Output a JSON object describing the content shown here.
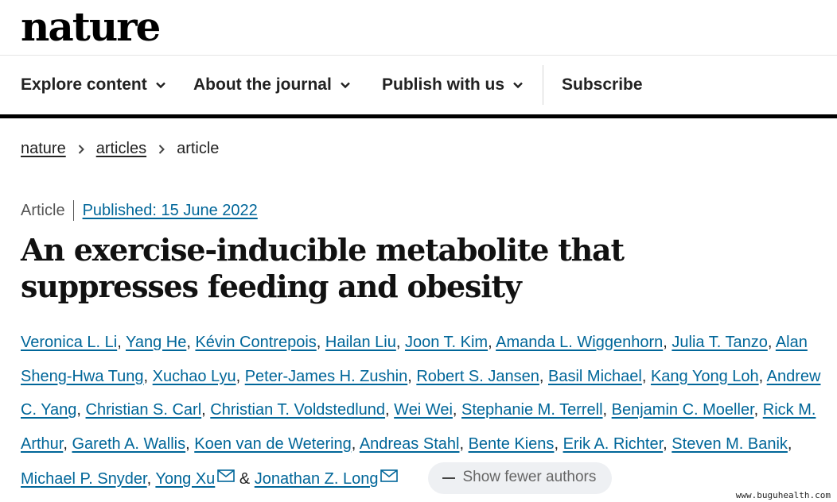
{
  "brand": {
    "logo": "nature"
  },
  "nav": {
    "items": [
      {
        "label": "Explore content"
      },
      {
        "label": "About the journal"
      },
      {
        "label": "Publish with us"
      }
    ],
    "subscribe": "Subscribe"
  },
  "breadcrumb": [
    "nature",
    "articles",
    "article"
  ],
  "article": {
    "type": "Article",
    "published": "Published: 15 June 2022",
    "title": "An exercise-inducible metabolite that suppresses feeding and obesity"
  },
  "authors": [
    "Veronica L. Li",
    "Yang He",
    "Kévin Contrepois",
    "Hailan Liu",
    "Joon T. Kim",
    "Amanda L. Wiggenhorn",
    "Julia T. Tanzo",
    "Alan Sheng-Hwa Tung",
    "Xuchao Lyu",
    "Peter-James H. Zushin",
    "Robert S. Jansen",
    "Basil Michael",
    "Kang Yong Loh",
    "Andrew C. Yang",
    "Christian S. Carl",
    "Christian T. Voldstedlund",
    "Wei Wei",
    "Stephanie M. Terrell",
    "Benjamin C. Moeller",
    "Rick M. Arthur",
    "Gareth A. Wallis",
    "Koen van de Wetering",
    "Andreas Stahl",
    "Bente Kiens",
    "Erik A. Richter",
    "Steven M. Banik",
    "Michael P. Snyder",
    "Yong Xu",
    "Jonathan Z. Long"
  ],
  "author_separator": "&",
  "show_fewer": "Show fewer authors",
  "watermark": "www.buguhealth.com",
  "colors": {
    "link": "#006699",
    "pill_bg": "#eef0f3"
  }
}
